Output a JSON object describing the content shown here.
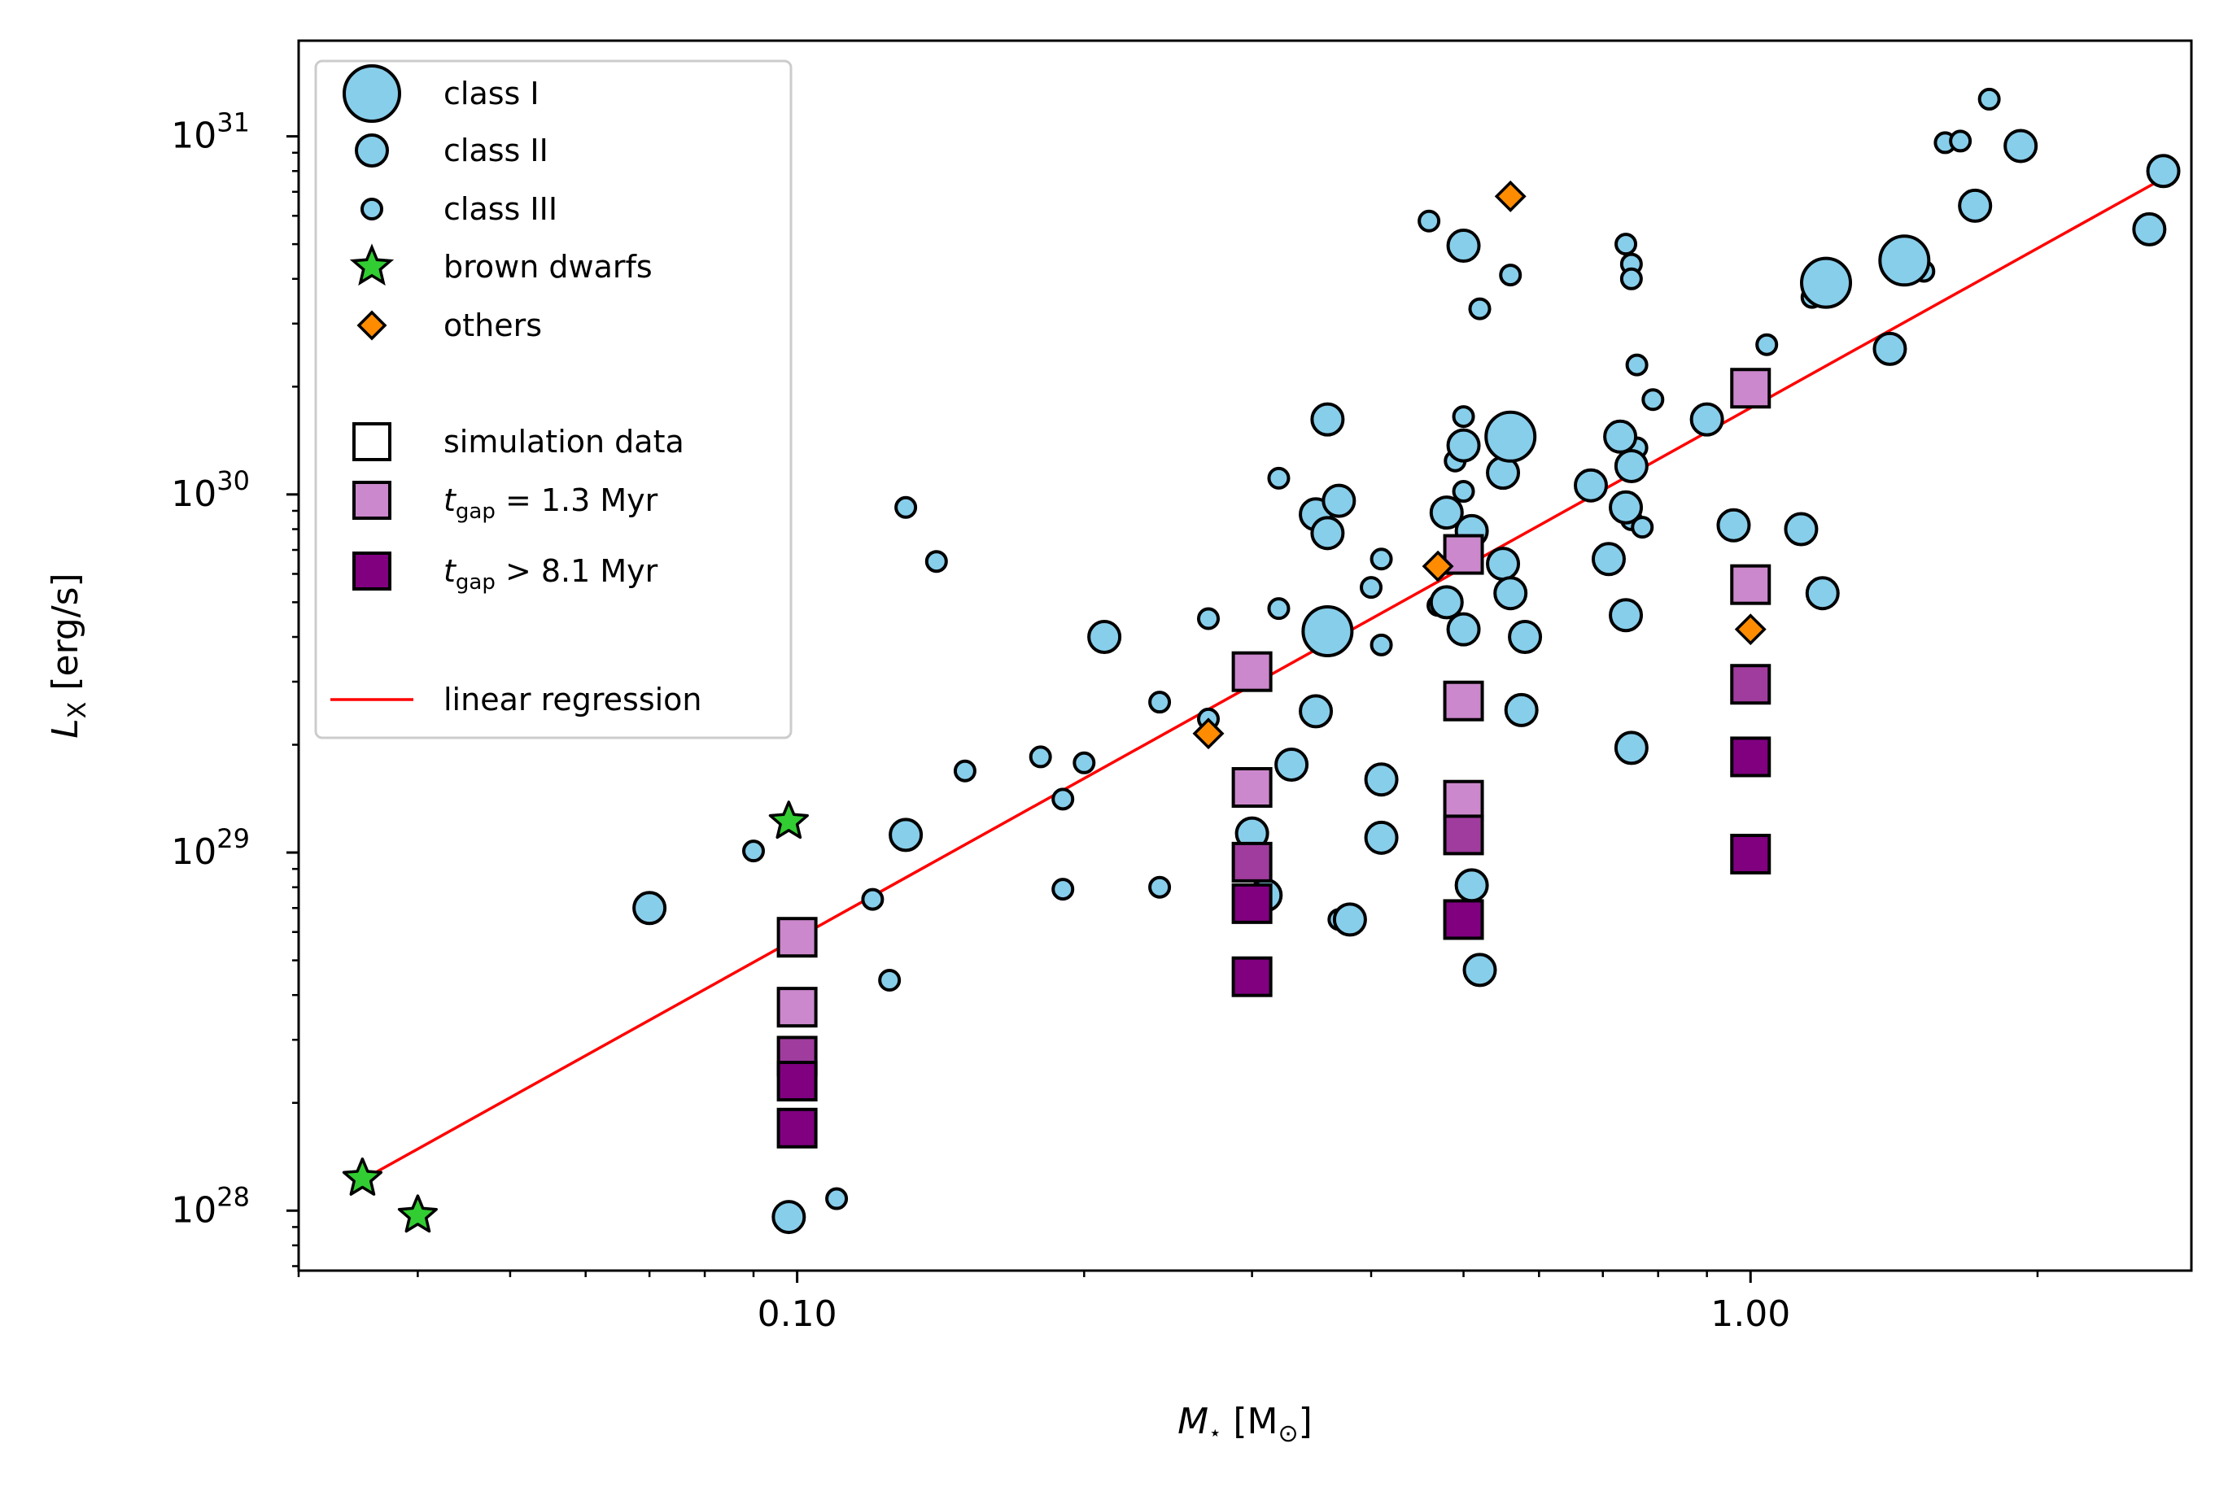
{
  "chart_data": {
    "type": "scatter",
    "title": "",
    "xlabel": {
      "symbol": "M",
      "sub": "⋆",
      "rest": " [M",
      "sub2": "⊙",
      "end": "]"
    },
    "ylabel": {
      "symbol": "L",
      "sub": "X",
      "rest": " [erg/s]"
    },
    "xscale": "log",
    "yscale": "log",
    "xlim": [
      0.03,
      2.9
    ],
    "ylim": [
      6.8e+27,
      1.85e+31
    ],
    "x_ticks": [
      {
        "value": 0.1,
        "label": "0.10"
      },
      {
        "value": 1.0,
        "label": "1.00"
      }
    ],
    "y_ticks": [
      {
        "value": 1e+28,
        "base": "10",
        "exp": "28"
      },
      {
        "value": 1e+29,
        "base": "10",
        "exp": "29"
      },
      {
        "value": 1e+30,
        "base": "10",
        "exp": "30"
      },
      {
        "value": 1e+31,
        "base": "10",
        "exp": "31"
      }
    ],
    "grid": false,
    "legend_position": "top-left",
    "legend": [
      {
        "label": "class I",
        "marker": "circle-large"
      },
      {
        "label": "class II",
        "marker": "circle-medium"
      },
      {
        "label": "class III",
        "marker": "circle-small"
      },
      {
        "label": "brown dwarfs",
        "marker": "star"
      },
      {
        "label": "others",
        "marker": "diamond"
      },
      {
        "label": "simulation data",
        "marker": "square-open"
      },
      {
        "label_pre": "t",
        "label_sub": "gap",
        "label_post": " = 1.3 Myr",
        "marker": "square-light"
      },
      {
        "label_pre": "t",
        "label_sub": "gap",
        "label_post": " > 8.1 Myr",
        "marker": "square-dark"
      },
      {
        "label": "linear regression",
        "marker": "line"
      }
    ],
    "colors": {
      "ysos": "#87ceeb",
      "brown_dwarfs": "#32cd32",
      "others": "#ff8c00",
      "sim_1_3": "#cc88cc",
      "sim_mid": "#a03c9e",
      "sim_8_1": "#800080",
      "regression": "#ff0000",
      "edge": "#000000"
    },
    "regression_line": {
      "x": [
        0.035,
        2.75
      ],
      "y": [
        1.22e+28,
        7.8e+30
      ]
    },
    "series": [
      {
        "name": "class I",
        "points": [
          [
            0.36,
            4.15e+29
          ],
          [
            0.56,
            1.45e+30
          ],
          [
            1.2,
            3.9e+30
          ],
          [
            1.45,
            4.5e+30
          ]
        ]
      },
      {
        "name": "class II",
        "points": [
          [
            0.07,
            7e+28
          ],
          [
            0.098,
            9.6e+27
          ],
          [
            0.13,
            1.12e+29
          ],
          [
            0.21,
            4e+29
          ],
          [
            0.3,
            1.13e+29
          ],
          [
            0.31,
            7.6e+28
          ],
          [
            0.33,
            1.76e+29
          ],
          [
            0.35,
            8.8e+29
          ],
          [
            0.35,
            2.48e+29
          ],
          [
            0.36,
            7.8e+29
          ],
          [
            0.36,
            1.62e+30
          ],
          [
            0.37,
            9.6e+29
          ],
          [
            0.38,
            6.5e+28
          ],
          [
            0.41,
            1.6e+29
          ],
          [
            0.41,
            1.1e+29
          ],
          [
            0.48,
            5e+29
          ],
          [
            0.48,
            8.9e+29
          ],
          [
            0.5,
            4.95e+30
          ],
          [
            0.5,
            4.2e+29
          ],
          [
            0.5,
            1.37e+30
          ],
          [
            0.51,
            7.9e+29
          ],
          [
            0.51,
            8.1e+28
          ],
          [
            0.52,
            4.7e+28
          ],
          [
            0.55,
            1.15e+30
          ],
          [
            0.55,
            6.4e+29
          ],
          [
            0.56,
            5.3e+29
          ],
          [
            0.58,
            4e+29
          ],
          [
            0.575,
            2.5e+29
          ],
          [
            0.68,
            1.06e+30
          ],
          [
            0.71,
            6.6e+29
          ],
          [
            0.73,
            1.45e+30
          ],
          [
            0.74,
            9.2e+29
          ],
          [
            0.74,
            4.6e+29
          ],
          [
            0.75,
            1.2e+30
          ],
          [
            0.75,
            1.96e+29
          ],
          [
            0.9,
            1.62e+30
          ],
          [
            0.96,
            8.2e+29
          ],
          [
            1.13,
            8e+29
          ],
          [
            1.19,
            5.3e+29
          ],
          [
            1.4,
            2.55e+30
          ],
          [
            1.72,
            6.4e+30
          ],
          [
            1.92,
            9.4e+30
          ],
          [
            2.62,
            5.5e+30
          ],
          [
            2.71,
            8e+30
          ]
        ]
      },
      {
        "name": "class III",
        "points": [
          [
            0.09,
            1.01e+29
          ],
          [
            0.11,
            1.08e+28
          ],
          [
            0.12,
            7.4e+28
          ],
          [
            0.125,
            4.4e+28
          ],
          [
            0.13,
            9.2e+29
          ],
          [
            0.14,
            6.5e+29
          ],
          [
            0.15,
            1.69e+29
          ],
          [
            0.18,
            1.85e+29
          ],
          [
            0.19,
            1.41e+29
          ],
          [
            0.19,
            7.9e+28
          ],
          [
            0.2,
            1.78e+29
          ],
          [
            0.24,
            2.63e+29
          ],
          [
            0.24,
            8e+28
          ],
          [
            0.27,
            4.5e+29
          ],
          [
            0.27,
            2.36e+29
          ],
          [
            0.32,
            1.11e+30
          ],
          [
            0.32,
            4.8e+29
          ],
          [
            0.37,
            6.5e+28
          ],
          [
            0.4,
            5.5e+29
          ],
          [
            0.41,
            6.6e+29
          ],
          [
            0.41,
            3.8e+29
          ],
          [
            0.46,
            5.8e+30
          ],
          [
            0.47,
            4.9e+29
          ],
          [
            0.49,
            1.24e+30
          ],
          [
            0.5,
            1.65e+30
          ],
          [
            0.5,
            1.02e+30
          ],
          [
            0.52,
            3.3e+30
          ],
          [
            0.56,
            4.1e+30
          ],
          [
            0.56,
            1.57e+30
          ],
          [
            0.74,
            5e+30
          ],
          [
            0.75,
            4.4e+30
          ],
          [
            0.75,
            4e+30
          ],
          [
            0.76,
            2.3e+30
          ],
          [
            0.75,
            8.5e+29
          ],
          [
            0.77,
            8.1e+29
          ],
          [
            0.79,
            1.84e+30
          ],
          [
            0.76,
            1.35e+30
          ],
          [
            1.04,
            2.62e+30
          ],
          [
            1.16,
            3.55e+30
          ],
          [
            1.52,
            4.2e+30
          ],
          [
            1.6,
            9.6e+30
          ],
          [
            1.66,
            9.7e+30
          ],
          [
            1.78,
            1.27e+31
          ]
        ]
      },
      {
        "name": "brown dwarfs",
        "points": [
          [
            0.035,
            1.23e+28
          ],
          [
            0.04,
            9.7e+27
          ],
          [
            0.098,
            1.22e+29
          ]
        ]
      },
      {
        "name": "others",
        "points": [
          [
            0.27,
            2.15e+29
          ],
          [
            0.47,
            6.3e+29
          ],
          [
            0.56,
            6.8e+30
          ],
          [
            1.0,
            4.2e+29
          ]
        ]
      },
      {
        "name": "t_gap = 1.3 Myr",
        "points": [
          [
            0.1,
            5.8e+28
          ],
          [
            0.1,
            3.7e+28
          ],
          [
            0.3,
            3.2e+29
          ],
          [
            0.3,
            1.52e+29
          ],
          [
            0.5,
            6.8e+29
          ],
          [
            0.5,
            2.65e+29
          ],
          [
            0.5,
            1.4e+29
          ],
          [
            1.0,
            1.98e+30
          ],
          [
            1.0,
            5.6e+29
          ]
        ]
      },
      {
        "name": "intermediate t_gap",
        "points": [
          [
            0.1,
            2.7e+28
          ],
          [
            0.3,
            9.4e+28
          ],
          [
            0.5,
            1.12e+29
          ],
          [
            1.0,
            2.95e+29
          ]
        ]
      },
      {
        "name": "t_gap > 8.1 Myr",
        "points": [
          [
            0.1,
            2.3e+28
          ],
          [
            0.1,
            1.7e+28
          ],
          [
            0.3,
            7.2e+28
          ],
          [
            0.3,
            4.5e+28
          ],
          [
            0.5,
            6.5e+28
          ],
          [
            1.0,
            1.85e+29
          ],
          [
            1.0,
            9.9e+28
          ]
        ]
      }
    ]
  }
}
